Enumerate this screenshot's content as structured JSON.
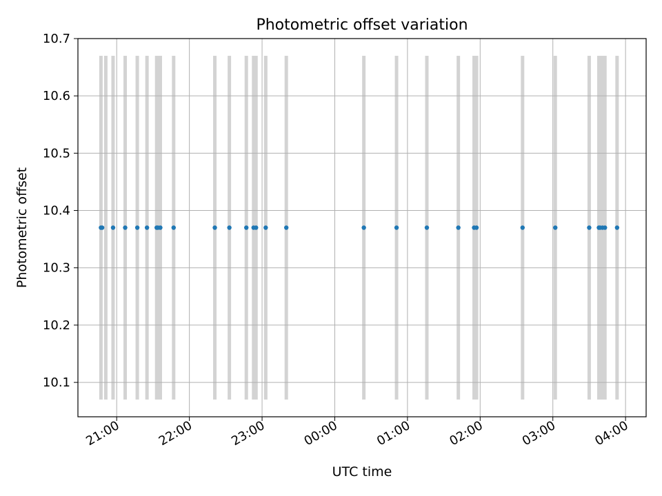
{
  "chart_data": {
    "type": "scatter",
    "title": "Photometric offset variation",
    "xlabel": "UTC time",
    "ylabel": "Photometric offset",
    "x_axis_type": "time",
    "x_range": [
      "20:28",
      "04:17"
    ],
    "ylim": [
      10.04,
      10.7
    ],
    "x_ticks": [
      "21:00",
      "22:00",
      "23:00",
      "00:00",
      "01:00",
      "02:00",
      "03:00",
      "04:00"
    ],
    "y_ticks": [
      "10.1",
      "10.2",
      "10.3",
      "10.4",
      "10.5",
      "10.6",
      "10.7"
    ],
    "grid": true,
    "colors": {
      "points": "#1f77b4",
      "bands": "#d3d3d3",
      "grid": "#b0b0b0"
    },
    "bands_y_range": [
      10.07,
      10.67
    ],
    "bands": [
      "20:47",
      "20:51",
      "20:57",
      "21:07",
      "21:17",
      "21:25",
      "21:33",
      "21:34",
      "21:36",
      "21:47",
      "22:21",
      "22:33",
      "22:47",
      "22:53",
      "22:55",
      "23:03",
      "23:20",
      "00:24",
      "00:51",
      "01:16",
      "01:42",
      "01:55",
      "01:57",
      "02:35",
      "03:02",
      "03:30",
      "03:38",
      "03:39",
      "03:41",
      "03:43",
      "03:53"
    ],
    "points": {
      "x": [
        "20:47",
        "20:48",
        "20:57",
        "21:07",
        "21:17",
        "21:25",
        "21:33",
        "21:34",
        "21:36",
        "21:47",
        "22:21",
        "22:33",
        "22:47",
        "22:53",
        "22:55",
        "23:03",
        "23:20",
        "00:24",
        "00:51",
        "01:16",
        "01:42",
        "01:55",
        "01:57",
        "02:35",
        "03:02",
        "03:30",
        "03:38",
        "03:39",
        "03:41",
        "03:43",
        "03:53"
      ],
      "y": [
        10.37,
        10.37,
        10.37,
        10.37,
        10.37,
        10.37,
        10.37,
        10.37,
        10.37,
        10.37,
        10.37,
        10.37,
        10.37,
        10.37,
        10.37,
        10.37,
        10.37,
        10.37,
        10.37,
        10.37,
        10.37,
        10.37,
        10.37,
        10.37,
        10.37,
        10.37,
        10.37,
        10.37,
        10.37,
        10.37,
        10.37
      ]
    }
  }
}
